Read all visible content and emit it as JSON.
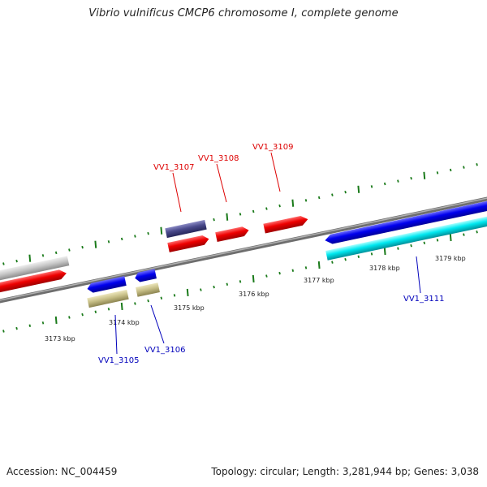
{
  "title": "Vibrio vulnificus CMCP6 chromosome I, complete genome",
  "footer": {
    "accession": "Accession: NC_004459",
    "summary": "Topology: circular; Length: 3,281,944 bp; Genes: 3,038"
  },
  "scale_labels": {
    "k3173": "3173 kbp",
    "k3174": "3174 kbp",
    "k3175": "3175 kbp",
    "k3176": "3176 kbp",
    "k3177": "3177 kbp",
    "k3178": "3178 kbp",
    "k3179": "3179 kbp"
  },
  "gene_labels": {
    "vv1_3105": "VV1_3105",
    "vv1_3106": "VV1_3106",
    "vv1_3107": "VV1_3107",
    "vv1_3108": "VV1_3108",
    "vv1_3109": "VV1_3109",
    "vv1_3111": "VV1_3111"
  },
  "colors": {
    "forward_label": "#dd0000",
    "reverse_label": "#0000bb",
    "tick": "#1a7a1a",
    "backbone": "#808080",
    "red_feature": "#ee0000",
    "blue_feature": "#0000ee",
    "cyan_feature": "#00e5ee",
    "grey_feature": "#c8c8c8",
    "navy_feature": "#4a4a8c",
    "khaki_feature": "#c8c088"
  },
  "icons": {
    "feature_arrow": "gene-arrow-icon"
  }
}
